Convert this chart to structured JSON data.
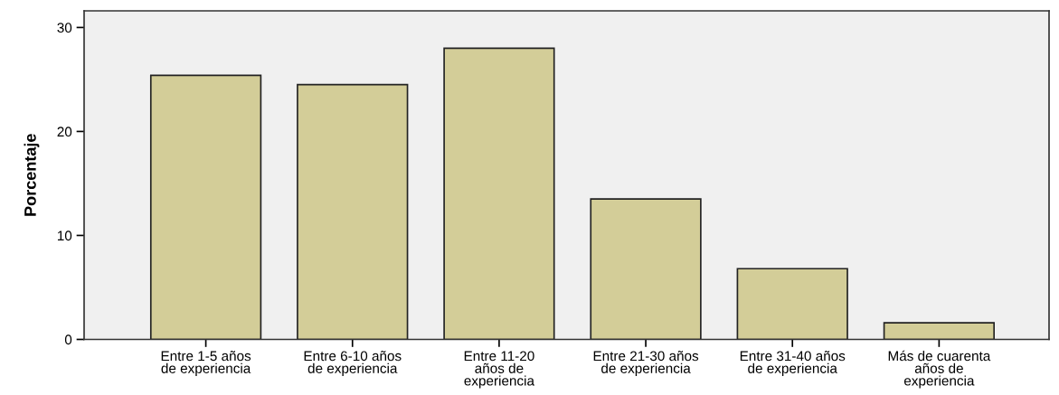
{
  "chart_data": {
    "type": "bar",
    "ylabel": "Porcentaje",
    "categories": [
      "Entre 1-5 años\nde experiencia",
      "Entre 6-10 años\nde experiencia",
      "Entre 11-20\naños de\nexperiencia",
      "Entre 21-30 años\nde experiencia",
      "Entre 31-40 años\nde experiencia",
      "Más de cuarenta\naños de\nexperiencia"
    ],
    "values": [
      25.4,
      24.5,
      28.0,
      13.5,
      6.8,
      1.6
    ],
    "color": "#d3cd98",
    "ylim": [
      0,
      31.6
    ],
    "yticks": [
      0,
      10,
      20,
      30
    ],
    "grid": false
  }
}
